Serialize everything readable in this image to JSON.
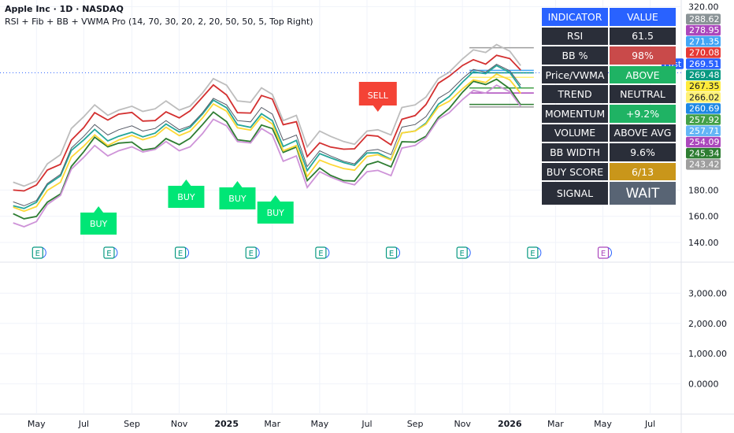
{
  "header": {
    "title": "Apple Inc · 1D · NASDAQ",
    "subtitle": "RSI + Fib + BB + VWMA Pro (14, 70, 30, 20, 2, 20, 50, 50, 5, Top Right)"
  },
  "table": {
    "header": [
      "INDICATOR",
      "VALUE"
    ],
    "rows": [
      {
        "label": "RSI",
        "value": "61.5",
        "color": "#2a2e39"
      },
      {
        "label": "BB %",
        "value": "98%",
        "color": "#c94a4a"
      },
      {
        "label": "Price/VWMA",
        "value": "ABOVE",
        "color": "#1fb364"
      },
      {
        "label": "TREND",
        "value": "NEUTRAL",
        "color": "#2a2e39"
      },
      {
        "label": "MOMENTUM",
        "value": "+9.2%",
        "color": "#1fb364"
      },
      {
        "label": "VOLUME",
        "value": "ABOVE AVG",
        "color": "#2a2e39"
      },
      {
        "label": "BB WIDTH",
        "value": "9.6%",
        "color": "#2a2e39"
      },
      {
        "label": "BUY SCORE",
        "value": "6/13",
        "color": "#c9961a"
      },
      {
        "label": "SIGNAL",
        "value": "WAIT",
        "color": "#586474"
      }
    ]
  },
  "chart_data": [
    {
      "type": "line",
      "title": "Apple Inc · 1D · NASDAQ",
      "x": [
        "2024-04-01",
        "2024-04-15",
        "2024-05-01",
        "2024-05-15",
        "2024-06-01",
        "2024-06-15",
        "2024-07-01",
        "2024-07-15",
        "2024-08-01",
        "2024-08-15",
        "2024-09-01",
        "2024-09-15",
        "2024-10-01",
        "2024-10-15",
        "2024-11-01",
        "2024-11-15",
        "2024-12-01",
        "2024-12-15",
        "2025-01-01",
        "2025-01-15",
        "2025-02-01",
        "2025-02-15",
        "2025-03-01",
        "2025-03-15",
        "2025-04-01",
        "2025-04-15",
        "2025-05-01",
        "2025-05-15",
        "2025-06-01",
        "2025-06-15",
        "2025-07-01",
        "2025-07-15",
        "2025-08-01",
        "2025-08-15",
        "2025-09-01",
        "2025-09-15",
        "2025-10-01",
        "2025-10-15",
        "2025-11-01",
        "2025-11-15",
        "2025-12-01",
        "2025-12-15",
        "2026-01-01",
        "2026-01-15"
      ],
      "series": [
        {
          "name": "close",
          "values": [
            171,
            168,
            172,
            185,
            192,
            212,
            221,
            230,
            222,
            226,
            229,
            225,
            227,
            233,
            226,
            229,
            239,
            250,
            245,
            233,
            232,
            243,
            238,
            218,
            222,
            198,
            210,
            206,
            202,
            200,
            210,
            211,
            207,
            228,
            230,
            236,
            250,
            255,
            265,
            272,
            270,
            276,
            271,
            260
          ]
        }
      ],
      "fib_levels": [
        288.62,
        271.35,
        269.48,
        266.02,
        257.92,
        254.09,
        245.34,
        243.42
      ],
      "price_labels": [
        {
          "text": "288.62",
          "color": "#8a9396"
        },
        {
          "text": "278.95",
          "color": "#ab47bc"
        },
        {
          "text": "271.35",
          "color": "#42a5f5"
        },
        {
          "text": "270.08",
          "color": "#e53935"
        },
        {
          "text": "269.51",
          "color": "#2962ff",
          "tag": "Post"
        },
        {
          "text": "269.48",
          "color": "#089981"
        },
        {
          "text": "267.35",
          "color": "#ffeb3b",
          "dark": true
        },
        {
          "text": "266.02",
          "color": "#fff176",
          "dark": true
        },
        {
          "text": "260.69",
          "color": "#1e88e5"
        },
        {
          "text": "257.92",
          "color": "#43a047"
        },
        {
          "text": "257.71",
          "color": "#64b5f6"
        },
        {
          "text": "254.09",
          "color": "#ab47bc"
        },
        {
          "text": "245.34",
          "color": "#2e7d32"
        },
        {
          "text": "243.42",
          "color": "#9e9e9e"
        }
      ],
      "ylim": [
        125,
        325
      ],
      "yticks": [
        {
          "value": 320,
          "text": "320.00"
        },
        {
          "value": 180,
          "text": "180.00"
        },
        {
          "value": 160,
          "text": "160.00"
        },
        {
          "value": 140,
          "text": "140.00"
        }
      ],
      "signals": [
        {
          "type": "buy",
          "text": "BUY",
          "date": "2024-07-20"
        },
        {
          "type": "buy",
          "text": "BUY",
          "date": "2024-11-10"
        },
        {
          "type": "buy",
          "text": "BUY",
          "date": "2025-01-15"
        },
        {
          "type": "buy",
          "text": "BUY",
          "date": "2025-03-05"
        },
        {
          "type": "sell",
          "text": "SELL",
          "date": "2025-07-15"
        }
      ],
      "earnings": [
        {
          "date": "2024-05-01",
          "text": "E"
        },
        {
          "date": "2024-08-01",
          "text": "E"
        },
        {
          "date": "2024-11-01",
          "text": "E"
        },
        {
          "date": "2025-01-31",
          "text": "E"
        },
        {
          "date": "2025-05-01",
          "text": "E"
        },
        {
          "date": "2025-07-31",
          "text": "E"
        },
        {
          "date": "2025-10-30",
          "text": "E"
        },
        {
          "date": "2026-01-29",
          "text": "E"
        },
        {
          "date": "2026-04-30",
          "text": "E",
          "upcoming": true
        }
      ],
      "legend": "none",
      "grid": true
    },
    {
      "type": "bar",
      "ylim": [
        -1000,
        4000
      ],
      "yticks": [
        {
          "value": 3000,
          "text": "3,000.00"
        },
        {
          "value": 2000,
          "text": "2,000.00"
        },
        {
          "value": 1000,
          "text": "1,000.00"
        },
        {
          "value": 0,
          "text": "0.0000"
        }
      ],
      "grid": true
    }
  ],
  "xaxis": {
    "ticks": [
      {
        "date": "2024-05-01",
        "text": "May"
      },
      {
        "date": "2024-07-01",
        "text": "Jul"
      },
      {
        "date": "2024-09-01",
        "text": "Sep"
      },
      {
        "date": "2024-11-01",
        "text": "Nov"
      },
      {
        "date": "2025-01-01",
        "text": "2025",
        "bold": true
      },
      {
        "date": "2025-03-01",
        "text": "Mar"
      },
      {
        "date": "2025-05-01",
        "text": "May"
      },
      {
        "date": "2025-07-01",
        "text": "Jul"
      },
      {
        "date": "2025-09-01",
        "text": "Sep"
      },
      {
        "date": "2025-11-01",
        "text": "Nov"
      },
      {
        "date": "2026-01-01",
        "text": "2026",
        "bold": true
      },
      {
        "date": "2026-03-01",
        "text": "Mar"
      },
      {
        "date": "2026-05-01",
        "text": "May"
      },
      {
        "date": "2026-07-01",
        "text": "Jul"
      }
    ]
  },
  "colors": {
    "buy": "#00e676",
    "sell": "#f44336",
    "price_line": "#2962ff",
    "earnings": "#089981"
  }
}
